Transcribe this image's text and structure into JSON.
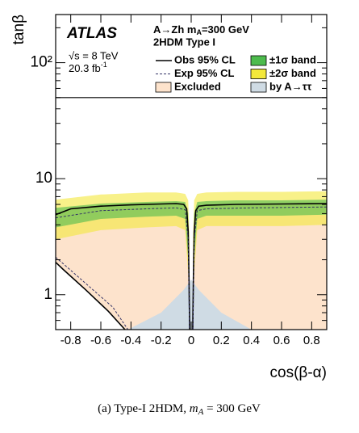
{
  "chart_data": {
    "type": "exclusion",
    "xlabel": "cos(β-α)",
    "ylabel": "tanβ",
    "xlim": [
      -0.9,
      0.9
    ],
    "ylim": [
      0.5,
      260
    ],
    "log_y": true,
    "xticks": [
      -0.8,
      -0.6,
      -0.4,
      -0.2,
      0,
      0.2,
      0.4,
      0.6,
      0.8
    ],
    "yticks": [
      1,
      10,
      {
        "value": 100,
        "label": "10²"
      }
    ],
    "yminorticks": [
      0.6,
      0.7,
      0.8,
      0.9,
      2,
      3,
      4,
      5,
      6,
      7,
      8,
      9,
      20,
      30,
      40,
      50,
      60,
      70,
      80,
      90,
      200
    ],
    "hlines": [
      50
    ],
    "annotations": {
      "atlas": "ATLAS",
      "process": [
        "A→Zh m",
        "A",
        "=300 GeV"
      ],
      "model": "2HDM Type I",
      "energy": "√s = 8 TeV",
      "lumi": [
        "20.3 fb",
        "-1"
      ]
    },
    "caption": [
      "(a) Type-I 2HDM, ",
      "m",
      "A",
      " = 300 GeV"
    ],
    "series": [
      {
        "name": "Obs 95% CL",
        "kind": "line",
        "color": "#000000",
        "x": [
          -0.9,
          -0.8,
          -0.6,
          -0.4,
          -0.2,
          -0.1,
          -0.05,
          -0.03,
          -0.02,
          -0.015,
          -0.01,
          null,
          0.01,
          0.015,
          0.02,
          0.03,
          0.05,
          0.1,
          0.3,
          0.6,
          0.9,
          null,
          -0.9,
          -0.85,
          -0.7,
          -0.55,
          -0.44
        ],
        "y": [
          4.9,
          5.5,
          5.8,
          5.95,
          6.05,
          6.1,
          6.0,
          5.5,
          3.5,
          1.5,
          0.5,
          null,
          0.5,
          1.5,
          3.5,
          5.3,
          5.8,
          5.9,
          6.0,
          6.05,
          6.1,
          null,
          1.9,
          1.65,
          1.1,
          0.72,
          0.5
        ]
      },
      {
        "name": "Exp 95% CL",
        "kind": "line",
        "dash": true,
        "color": "#333366",
        "x": [
          -0.9,
          -0.6,
          -0.3,
          -0.1,
          -0.04,
          -0.02,
          -0.012,
          null,
          0.012,
          0.02,
          0.04,
          0.1,
          0.4,
          0.9,
          null,
          -0.9,
          -0.85,
          -0.7,
          -0.52,
          -0.42
        ],
        "y": [
          4.6,
          5.3,
          5.5,
          5.6,
          5.4,
          3.0,
          0.5,
          null,
          0.5,
          3.0,
          5.3,
          5.5,
          5.6,
          5.7,
          null,
          2.1,
          1.85,
          1.25,
          0.78,
          0.5
        ]
      },
      {
        "name": "Excluded",
        "kind": "excluded",
        "color": "#fde3cc"
      },
      {
        "name": "±1σ band",
        "kind": "band",
        "color": "#4dbb4d",
        "x": [
          -0.9,
          -0.6,
          -0.3,
          -0.1,
          -0.04,
          -0.02,
          -0.012,
          null,
          0.012,
          0.02,
          0.04,
          0.1,
          0.3,
          0.6,
          0.9
        ],
        "lower": [
          3.8,
          4.5,
          4.7,
          4.8,
          4.5,
          2.0,
          0.5,
          null,
          0.5,
          2.0,
          4.5,
          4.8,
          4.8,
          4.8,
          4.9
        ],
        "upper": [
          5.6,
          6.1,
          6.3,
          6.4,
          6.3,
          5.0,
          1.0,
          null,
          1.0,
          5.0,
          6.3,
          6.4,
          6.5,
          6.5,
          6.6
        ]
      },
      {
        "name": "±2σ band",
        "kind": "band",
        "color": "#f3e83a",
        "x": [
          -0.9,
          -0.6,
          -0.3,
          -0.1,
          -0.04,
          -0.02,
          -0.012,
          null,
          0.012,
          0.02,
          0.04,
          0.1,
          0.3,
          0.6,
          0.9
        ],
        "lower": [
          3.0,
          3.6,
          3.8,
          3.9,
          3.6,
          1.5,
          0.5,
          null,
          0.5,
          1.5,
          3.6,
          3.9,
          3.9,
          3.9,
          4.0
        ],
        "upper": [
          6.6,
          7.3,
          7.6,
          7.6,
          7.4,
          6.5,
          3.0,
          null,
          3.0,
          6.5,
          7.4,
          7.6,
          7.7,
          7.7,
          7.8
        ]
      },
      {
        "name": "by A→ττ",
        "kind": "area",
        "color": "#cfdbe4",
        "x": [
          -0.42,
          -0.2,
          -0.05,
          0,
          0.05,
          0.2,
          0.4
        ],
        "y": [
          0.5,
          0.7,
          1.1,
          1.35,
          1.1,
          0.7,
          0.5
        ]
      }
    ]
  }
}
